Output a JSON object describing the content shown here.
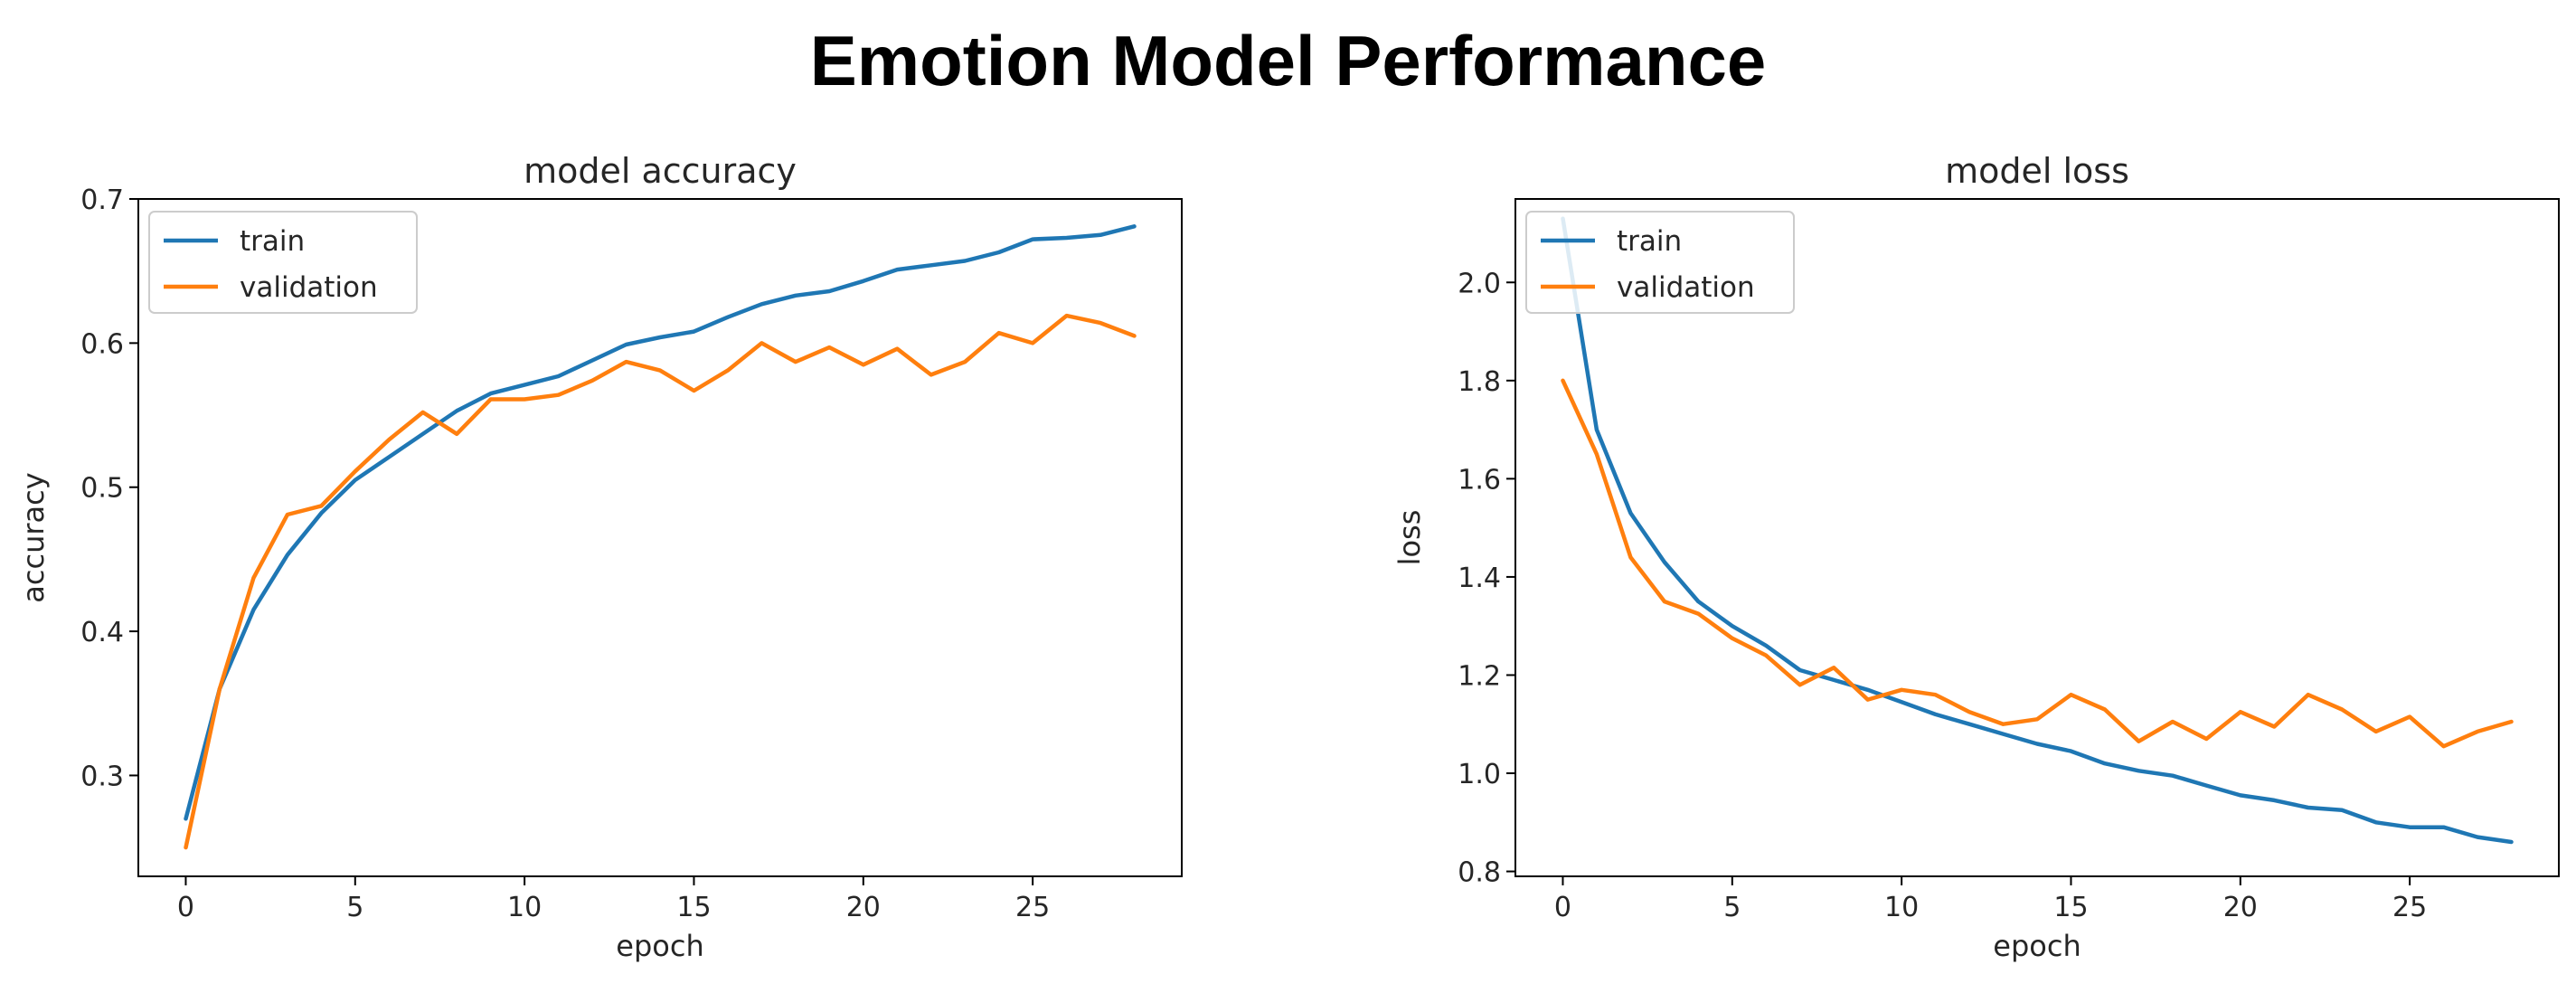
{
  "figure": {
    "title": "Emotion Model Performance"
  },
  "colors": {
    "train": "#1f77b4",
    "validation": "#ff7f0e",
    "axis": "#000000"
  },
  "chart_data": [
    {
      "type": "line",
      "title": "model accuracy",
      "xlabel": "epoch",
      "ylabel": "accuracy",
      "xlim": [
        -1.4,
        29.4
      ],
      "ylim": [
        0.23,
        0.7
      ],
      "xticks": [
        0,
        5,
        10,
        15,
        20,
        25
      ],
      "yticks": [
        0.3,
        0.4,
        0.5,
        0.6,
        0.7
      ],
      "ytick_labels": [
        "0.3",
        "0.4",
        "0.5",
        "0.6",
        "0.7"
      ],
      "legend": {
        "placement": "upper-left"
      },
      "x": [
        0,
        1,
        2,
        3,
        4,
        5,
        6,
        7,
        8,
        9,
        10,
        11,
        12,
        13,
        14,
        15,
        16,
        17,
        18,
        19,
        20,
        21,
        22,
        23,
        24,
        25,
        26,
        27,
        28
      ],
      "series": [
        {
          "name": "train",
          "color": "#1f77b4",
          "values": [
            0.27,
            0.36,
            0.415,
            0.453,
            0.482,
            0.505,
            0.521,
            0.537,
            0.553,
            0.565,
            0.571,
            0.577,
            0.588,
            0.599,
            0.604,
            0.608,
            0.618,
            0.627,
            0.633,
            0.636,
            0.643,
            0.651,
            0.654,
            0.657,
            0.663,
            0.672,
            0.673,
            0.675,
            0.681
          ]
        },
        {
          "name": "validation",
          "color": "#ff7f0e",
          "values": [
            0.25,
            0.36,
            0.437,
            0.481,
            0.487,
            0.511,
            0.533,
            0.552,
            0.537,
            0.561,
            0.561,
            0.564,
            0.574,
            0.587,
            0.581,
            0.567,
            0.581,
            0.6,
            0.587,
            0.597,
            0.585,
            0.596,
            0.578,
            0.587,
            0.607,
            0.6,
            0.619,
            0.614,
            0.605
          ]
        }
      ]
    },
    {
      "type": "line",
      "title": "model loss",
      "xlabel": "epoch",
      "ylabel": "loss",
      "xlim": [
        -1.4,
        29.4
      ],
      "ylim": [
        0.79,
        2.17
      ],
      "xticks": [
        0,
        5,
        10,
        15,
        20,
        25
      ],
      "yticks": [
        0.8,
        1.0,
        1.2,
        1.4,
        1.6,
        1.8,
        2.0
      ],
      "ytick_labels": [
        "0.8",
        "1.0",
        "1.2",
        "1.4",
        "1.6",
        "1.8",
        "2.0"
      ],
      "legend": {
        "placement": "upper-left"
      },
      "x": [
        0,
        1,
        2,
        3,
        4,
        5,
        6,
        7,
        8,
        9,
        10,
        11,
        12,
        13,
        14,
        15,
        16,
        17,
        18,
        19,
        20,
        21,
        22,
        23,
        24,
        25,
        26,
        27,
        28
      ],
      "series": [
        {
          "name": "train",
          "color": "#1f77b4",
          "values": [
            2.13,
            1.7,
            1.53,
            1.43,
            1.35,
            1.3,
            1.26,
            1.21,
            1.19,
            1.17,
            1.145,
            1.12,
            1.1,
            1.08,
            1.06,
            1.045,
            1.02,
            1.005,
            0.995,
            0.975,
            0.955,
            0.945,
            0.93,
            0.925,
            0.9,
            0.89,
            0.89,
            0.87,
            0.86
          ]
        },
        {
          "name": "validation",
          "color": "#ff7f0e",
          "values": [
            1.8,
            1.65,
            1.44,
            1.35,
            1.325,
            1.275,
            1.24,
            1.18,
            1.215,
            1.15,
            1.17,
            1.16,
            1.125,
            1.1,
            1.11,
            1.16,
            1.13,
            1.065,
            1.105,
            1.07,
            1.125,
            1.095,
            1.16,
            1.13,
            1.085,
            1.115,
            1.055,
            1.085,
            1.105
          ]
        }
      ]
    }
  ]
}
